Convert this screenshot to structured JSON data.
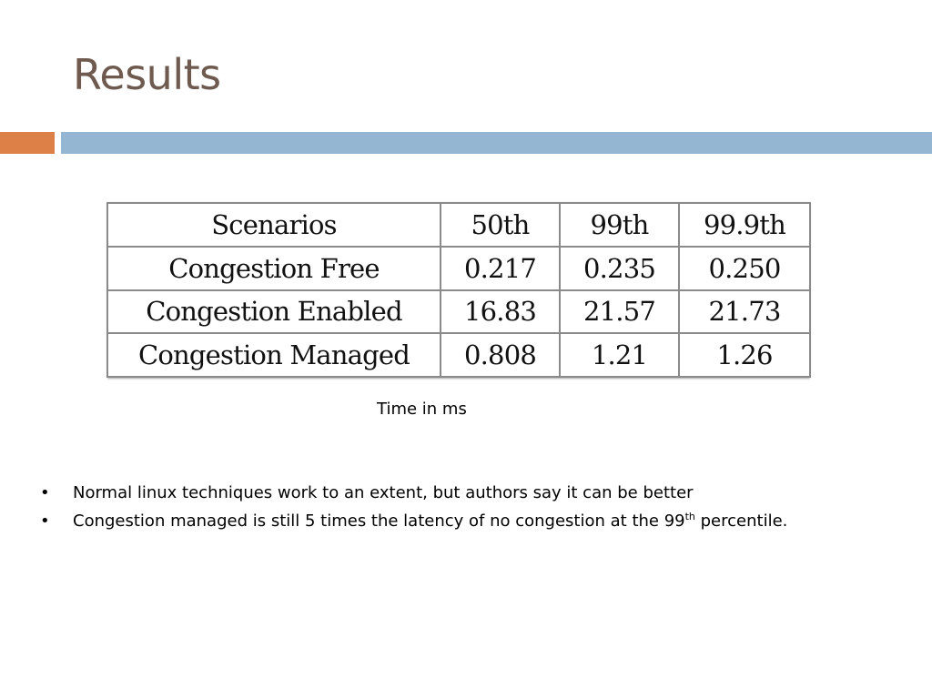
{
  "slide": {
    "title": "Results"
  },
  "colors": {
    "title": "#6e5a4e",
    "accent_bar": "#dd8047",
    "main_bar": "#94b6d2"
  },
  "table": {
    "headers": [
      "Scenarios",
      "50th",
      "99th",
      "99.9th"
    ],
    "rows": [
      [
        "Congestion Free",
        "0.217",
        "0.235",
        "0.250"
      ],
      [
        "Congestion Enabled",
        "16.83",
        "21.57",
        "21.73"
      ],
      [
        "Congestion Managed",
        "0.808",
        "1.21",
        "1.26"
      ]
    ],
    "caption": "Time in ms"
  },
  "bullets": [
    {
      "marker": "•",
      "text": "Normal linux techniques work to an extent, but authors say it can be better"
    },
    {
      "marker": "•",
      "text_before": "Congestion managed is still 5 times the latency of no congestion at the 99",
      "sup": "th",
      "text_after": " percentile."
    }
  ]
}
